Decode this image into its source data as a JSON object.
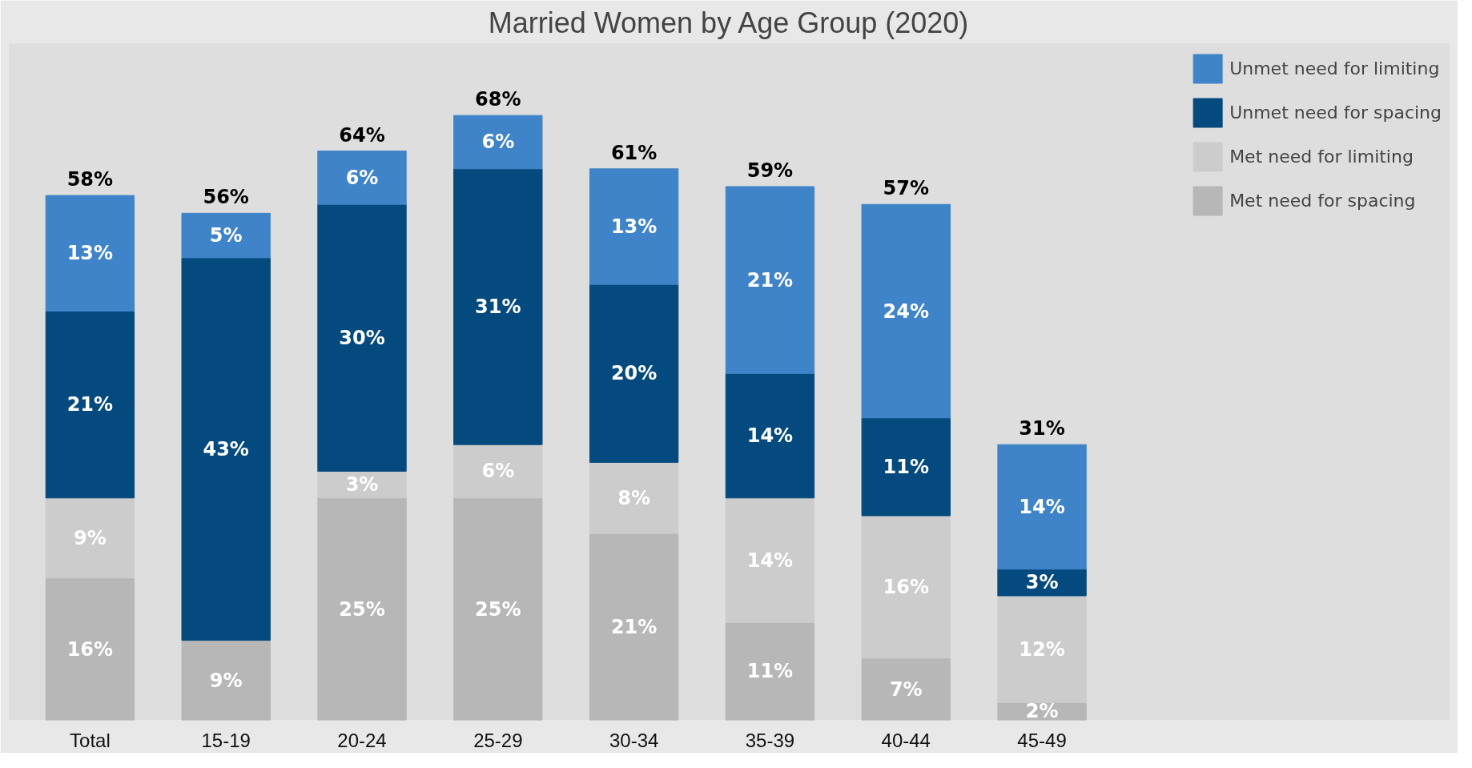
{
  "chart_data": {
    "type": "bar",
    "stacked": true,
    "title": "Married Women by Age Group (2020)",
    "categories": [
      "Total",
      "15-19",
      "20-24",
      "25-29",
      "30-34",
      "35-39",
      "40-44",
      "45-49"
    ],
    "series": [
      {
        "name": "Met need for spacing",
        "color": "#b7b7b7",
        "values": [
          16,
          9,
          25,
          25,
          21,
          11,
          7,
          2
        ],
        "value_labels": [
          "16%",
          "9%",
          "25%",
          "25%",
          "21%",
          "11%",
          "7%",
          "2%"
        ]
      },
      {
        "name": "Met need for limiting",
        "color": "#cccccc",
        "values": [
          9,
          0,
          3,
          6,
          8,
          14,
          16,
          12
        ],
        "value_labels": [
          "9%",
          null,
          "3%",
          "6%",
          "8%",
          "14%",
          "16%",
          "12%"
        ]
      },
      {
        "name": "Unmet need for spacing",
        "color": "#044a7e",
        "values": [
          21,
          43,
          30,
          31,
          20,
          14,
          11,
          3
        ],
        "value_labels": [
          "21%",
          "43%",
          "30%",
          "31%",
          "20%",
          "14%",
          "11%",
          "3%"
        ]
      },
      {
        "name": "Unmet need for limiting",
        "color": "#3f84c8",
        "values": [
          13,
          5,
          6,
          6,
          13,
          21,
          24,
          14
        ],
        "value_labels": [
          "13%",
          "5%",
          "6%",
          "6%",
          "13%",
          "21%",
          "24%",
          "14%"
        ]
      }
    ],
    "totals": [
      "58%",
      "56%",
      "64%",
      "68%",
      "61%",
      "59%",
      "57%",
      "31%"
    ],
    "legend": "top right",
    "grid": false
  }
}
